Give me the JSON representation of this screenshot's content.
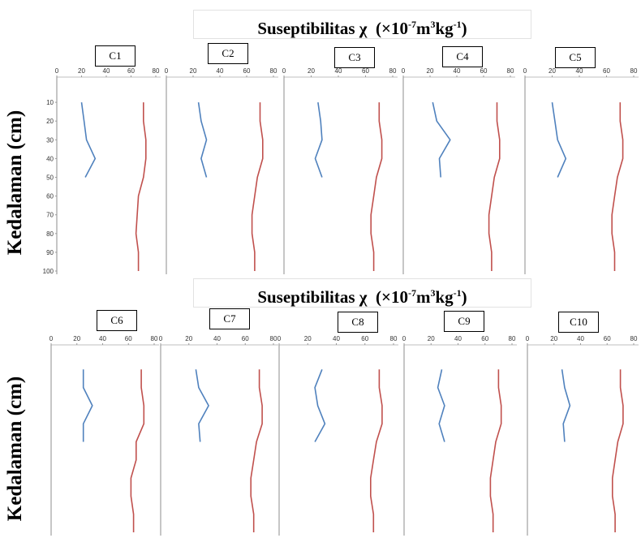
{
  "rows": [
    {
      "title_text": "Suseptibilitas",
      "title_symbol": "χ",
      "title_unit_pre": "(×10",
      "title_exp1": "-7",
      "title_mid": "m",
      "title_exp2": "3",
      "title_mid2": "kg",
      "title_exp3": "-1",
      "title_end": ")",
      "ylabel": "Kedalaman (cm)"
    },
    {
      "title_text": "Suseptibilitas",
      "title_symbol": "χ",
      "title_unit_pre": "(×10",
      "title_exp1": "-7",
      "title_mid": "m",
      "title_exp2": "3",
      "title_mid2": "kg",
      "title_exp3": "-1",
      "title_end": ")",
      "ylabel": "Kedalaman (cm)"
    }
  ],
  "colors": {
    "series_blue": "#4f81bd",
    "series_red": "#c0504d"
  },
  "chart_data": [
    {
      "type": "line",
      "label": "C1",
      "x_ticks": [
        "0",
        "20",
        "40",
        "60",
        "80"
      ],
      "y_ticks": [
        "10",
        "20",
        "30",
        "40",
        "50",
        "60",
        "70",
        "80",
        "90",
        "100"
      ],
      "xlim": [
        0,
        80
      ],
      "ylim": [
        0,
        100
      ],
      "series": [
        {
          "depth": [
            10,
            20,
            30,
            40,
            50
          ],
          "values": [
            20,
            22,
            24,
            31,
            23
          ]
        },
        {
          "depth": [
            10,
            20,
            30,
            40,
            50,
            60,
            70,
            80,
            90,
            100
          ],
          "values": [
            70,
            70,
            72,
            72,
            70,
            66,
            65,
            64,
            66,
            66
          ]
        }
      ]
    },
    {
      "type": "line",
      "label": "C2",
      "x_ticks": [
        "0",
        "20",
        "40",
        "60",
        "80"
      ],
      "y_ticks": [],
      "xlim": [
        0,
        80
      ],
      "ylim": [
        0,
        100
      ],
      "series": [
        {
          "depth": [
            10,
            20,
            30,
            40,
            50
          ],
          "values": [
            24,
            26,
            30,
            26,
            30
          ]
        },
        {
          "depth": [
            10,
            20,
            30,
            40,
            50,
            60,
            70,
            80,
            90,
            100
          ],
          "values": [
            70,
            70,
            72,
            72,
            68,
            66,
            64,
            64,
            66,
            66
          ]
        }
      ]
    },
    {
      "type": "line",
      "label": "C3",
      "x_ticks": [
        "0",
        "20",
        "40",
        "60",
        "80"
      ],
      "y_ticks": [],
      "xlim": [
        0,
        80
      ],
      "ylim": [
        0,
        100
      ],
      "series": [
        {
          "depth": [
            10,
            20,
            30,
            40,
            50
          ],
          "values": [
            25,
            27,
            28,
            23,
            28
          ]
        },
        {
          "depth": [
            10,
            20,
            30,
            40,
            50,
            60,
            70,
            80,
            90,
            100
          ],
          "values": [
            70,
            70,
            72,
            72,
            68,
            66,
            64,
            64,
            66,
            66
          ]
        }
      ]
    },
    {
      "type": "line",
      "label": "C4",
      "x_ticks": [
        "0",
        "20",
        "40",
        "60",
        "80"
      ],
      "y_ticks": [],
      "xlim": [
        0,
        80
      ],
      "ylim": [
        0,
        100
      ],
      "series": [
        {
          "depth": [
            10,
            20,
            30,
            40,
            50
          ],
          "values": [
            22,
            25,
            35,
            27,
            28
          ]
        },
        {
          "depth": [
            10,
            20,
            30,
            40,
            50,
            60,
            70,
            80,
            90,
            100
          ],
          "values": [
            70,
            70,
            72,
            72,
            68,
            66,
            64,
            64,
            66,
            66
          ]
        }
      ]
    },
    {
      "type": "line",
      "label": "C5",
      "x_ticks": [
        "0",
        "20",
        "40",
        "60",
        "80"
      ],
      "y_ticks": [],
      "xlim": [
        0,
        80
      ],
      "ylim": [
        0,
        100
      ],
      "series": [
        {
          "depth": [
            10,
            20,
            30,
            40,
            50
          ],
          "values": [
            20,
            22,
            24,
            30,
            24
          ]
        },
        {
          "depth": [
            10,
            20,
            30,
            40,
            50,
            60,
            70,
            80,
            90,
            100
          ],
          "values": [
            70,
            70,
            72,
            72,
            68,
            66,
            64,
            64,
            66,
            66
          ]
        }
      ]
    },
    {
      "type": "line",
      "label": "C6",
      "x_ticks": [
        "0",
        "20",
        "40",
        "60",
        "80"
      ],
      "y_ticks": [],
      "xlim": [
        0,
        80
      ],
      "ylim": [
        0,
        100
      ],
      "series": [
        {
          "depth": [
            10,
            20,
            30,
            40,
            50
          ],
          "values": [
            25,
            25,
            32,
            25,
            25
          ]
        },
        {
          "depth": [
            10,
            20,
            30,
            40,
            50,
            60,
            70,
            80,
            90,
            100
          ],
          "values": [
            70,
            70,
            72,
            72,
            66,
            66,
            62,
            62,
            64,
            64
          ]
        }
      ]
    },
    {
      "type": "line",
      "label": "C7",
      "x_ticks": [
        "0",
        "20",
        "40",
        "60",
        "80"
      ],
      "y_ticks": [],
      "xlim": [
        0,
        80
      ],
      "ylim": [
        0,
        100
      ],
      "series": [
        {
          "depth": [
            10,
            20,
            30,
            40,
            50
          ],
          "values": [
            25,
            27,
            34,
            27,
            28
          ]
        },
        {
          "depth": [
            10,
            20,
            30,
            40,
            50,
            60,
            70,
            80,
            90,
            100
          ],
          "values": [
            70,
            70,
            72,
            72,
            68,
            66,
            64,
            64,
            66,
            66
          ]
        }
      ]
    },
    {
      "type": "line",
      "label": "C8",
      "x_ticks": [
        "0",
        "20",
        "40",
        "60",
        "80"
      ],
      "y_ticks": [],
      "xlim": [
        0,
        80
      ],
      "ylim": [
        0,
        100
      ],
      "series": [
        {
          "depth": [
            10,
            20,
            30,
            40,
            50
          ],
          "values": [
            30,
            25,
            27,
            32,
            25
          ]
        },
        {
          "depth": [
            10,
            20,
            30,
            40,
            50,
            60,
            70,
            80,
            90,
            100
          ],
          "values": [
            70,
            70,
            72,
            72,
            68,
            66,
            64,
            64,
            66,
            66
          ]
        }
      ]
    },
    {
      "type": "line",
      "label": "C9",
      "x_ticks": [
        "0",
        "20",
        "40",
        "60",
        "80"
      ],
      "y_ticks": [],
      "xlim": [
        0,
        80
      ],
      "ylim": [
        0,
        100
      ],
      "series": [
        {
          "depth": [
            10,
            20,
            30,
            40,
            50
          ],
          "values": [
            28,
            25,
            30,
            26,
            30
          ]
        },
        {
          "depth": [
            10,
            20,
            30,
            40,
            50,
            60,
            70,
            80,
            90,
            100
          ],
          "values": [
            70,
            70,
            72,
            72,
            68,
            66,
            64,
            64,
            66,
            66
          ]
        }
      ]
    },
    {
      "type": "line",
      "label": "C10",
      "x_ticks": [
        "0",
        "20",
        "40",
        "60",
        "80"
      ],
      "y_ticks": [],
      "xlim": [
        0,
        80
      ],
      "ylim": [
        0,
        100
      ],
      "series": [
        {
          "depth": [
            10,
            20,
            30,
            40,
            50
          ],
          "values": [
            26,
            28,
            32,
            27,
            28
          ]
        },
        {
          "depth": [
            10,
            20,
            30,
            40,
            50,
            60,
            70,
            80,
            90,
            100
          ],
          "values": [
            70,
            70,
            72,
            72,
            68,
            66,
            64,
            64,
            66,
            66
          ]
        }
      ]
    }
  ]
}
